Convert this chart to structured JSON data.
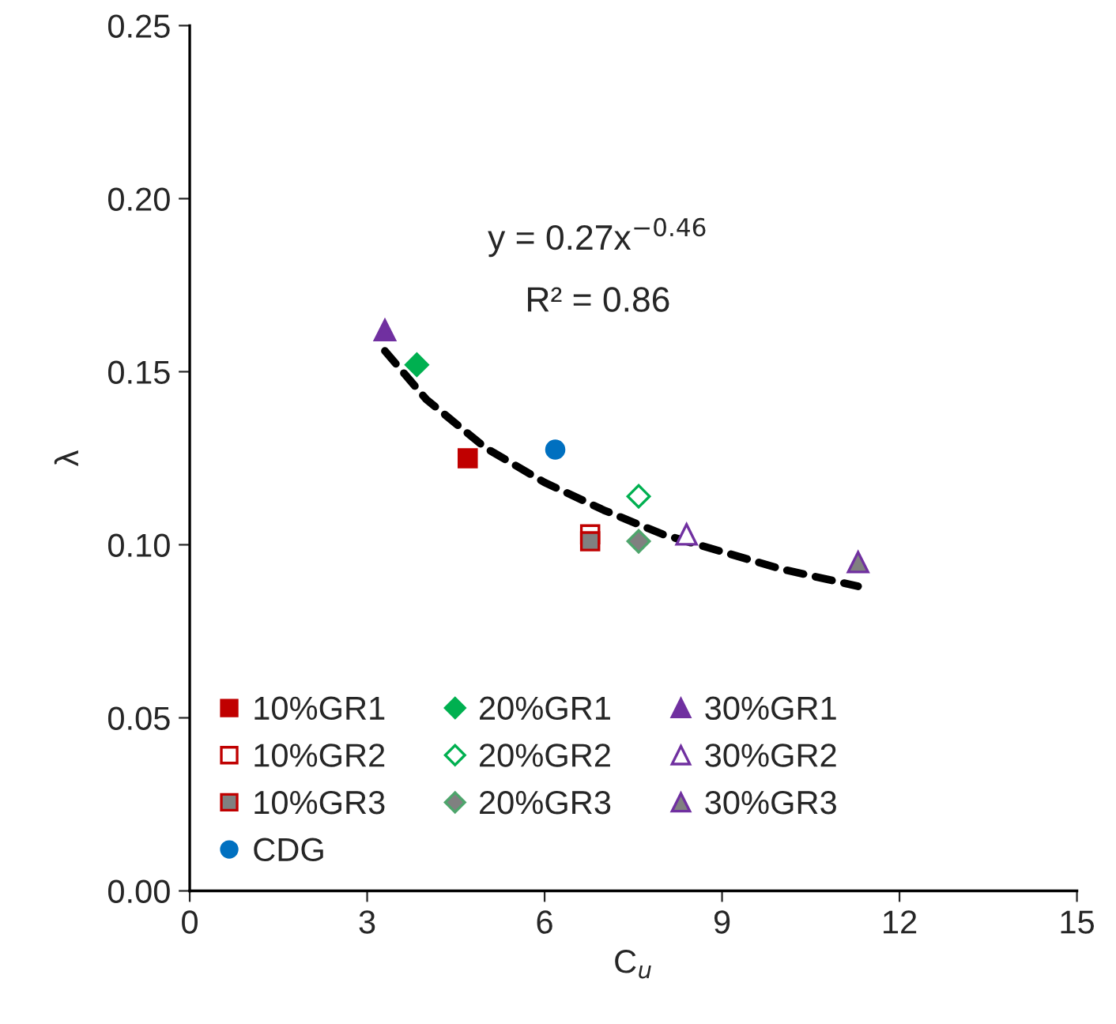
{
  "chart_data": {
    "type": "scatter",
    "xlabel": "C$_{u}$",
    "ylabel": "λ",
    "xlim": [
      0,
      15
    ],
    "xticks": [
      0,
      3,
      6,
      9,
      12,
      15
    ],
    "ylim": [
      0,
      0.25
    ],
    "yticks": [
      {
        "value": 0,
        "label": "0.00"
      },
      {
        "value": 0.05,
        "label": "0.05"
      },
      {
        "value": 0.1,
        "label": "0.10"
      },
      {
        "value": 0.15,
        "label": "0.15"
      },
      {
        "value": 0.2,
        "label": "0.20"
      },
      {
        "value": 0.25,
        "label": "0.25"
      }
    ],
    "grid": false,
    "legend": "bottom left",
    "series": [
      {
        "name": "10%GR1",
        "color": "#c00000",
        "marker": "square",
        "x": [
          4.7
        ],
        "values": [
          0.125
        ]
      },
      {
        "name": "20%GR1",
        "color": "#00b050",
        "marker": "diamond",
        "x": [
          3.84
        ],
        "values": [
          0.152
        ]
      },
      {
        "name": "30%GR1",
        "color": "#7030a0",
        "marker": "triangle",
        "x": [
          3.3
        ],
        "values": [
          0.162
        ]
      },
      {
        "name": "10%GR2",
        "color": "#c00000",
        "marker": "square",
        "x": [
          6.77
        ],
        "values": [
          0.103
        ]
      },
      {
        "name": "20%GR2",
        "color": "#00b050",
        "marker": "diamond",
        "x": [
          7.59
        ],
        "values": [
          0.114
        ]
      },
      {
        "name": "30%GR2",
        "color": "#7030a0",
        "marker": "triangle",
        "x": [
          8.4
        ],
        "values": [
          0.103
        ]
      },
      {
        "name": "10%GR3",
        "color": "#c00000",
        "marker": "square",
        "x": [
          6.77
        ],
        "values": [
          0.101
        ]
      },
      {
        "name": "20%GR3",
        "color": "#4ea56c",
        "marker": "diamond",
        "x": [
          7.59
        ],
        "values": [
          0.101
        ]
      },
      {
        "name": "30%GR3",
        "color": "#7030a0",
        "marker": "triangle",
        "x": [
          11.3
        ],
        "values": [
          0.095
        ]
      },
      {
        "name": "CDG",
        "color": "#0070c0",
        "marker": "circle",
        "x": [
          6.18
        ],
        "values": [
          0.1275
        ]
      },
      {
        "type": "line",
        "color": "#000000",
        "line_style": "dashed",
        "marker": "none",
        "x": [
          3.3,
          4,
          5,
          6,
          7,
          8,
          9,
          10,
          11.3
        ],
        "values": [
          0.156,
          0.142,
          0.128,
          0.118,
          0.11,
          0.103,
          0.098,
          0.093,
          0.088
        ]
      }
    ],
    "annotations": [
      "y = 0.27x$^{−0.46}$",
      "R² = 0.86"
    ]
  }
}
